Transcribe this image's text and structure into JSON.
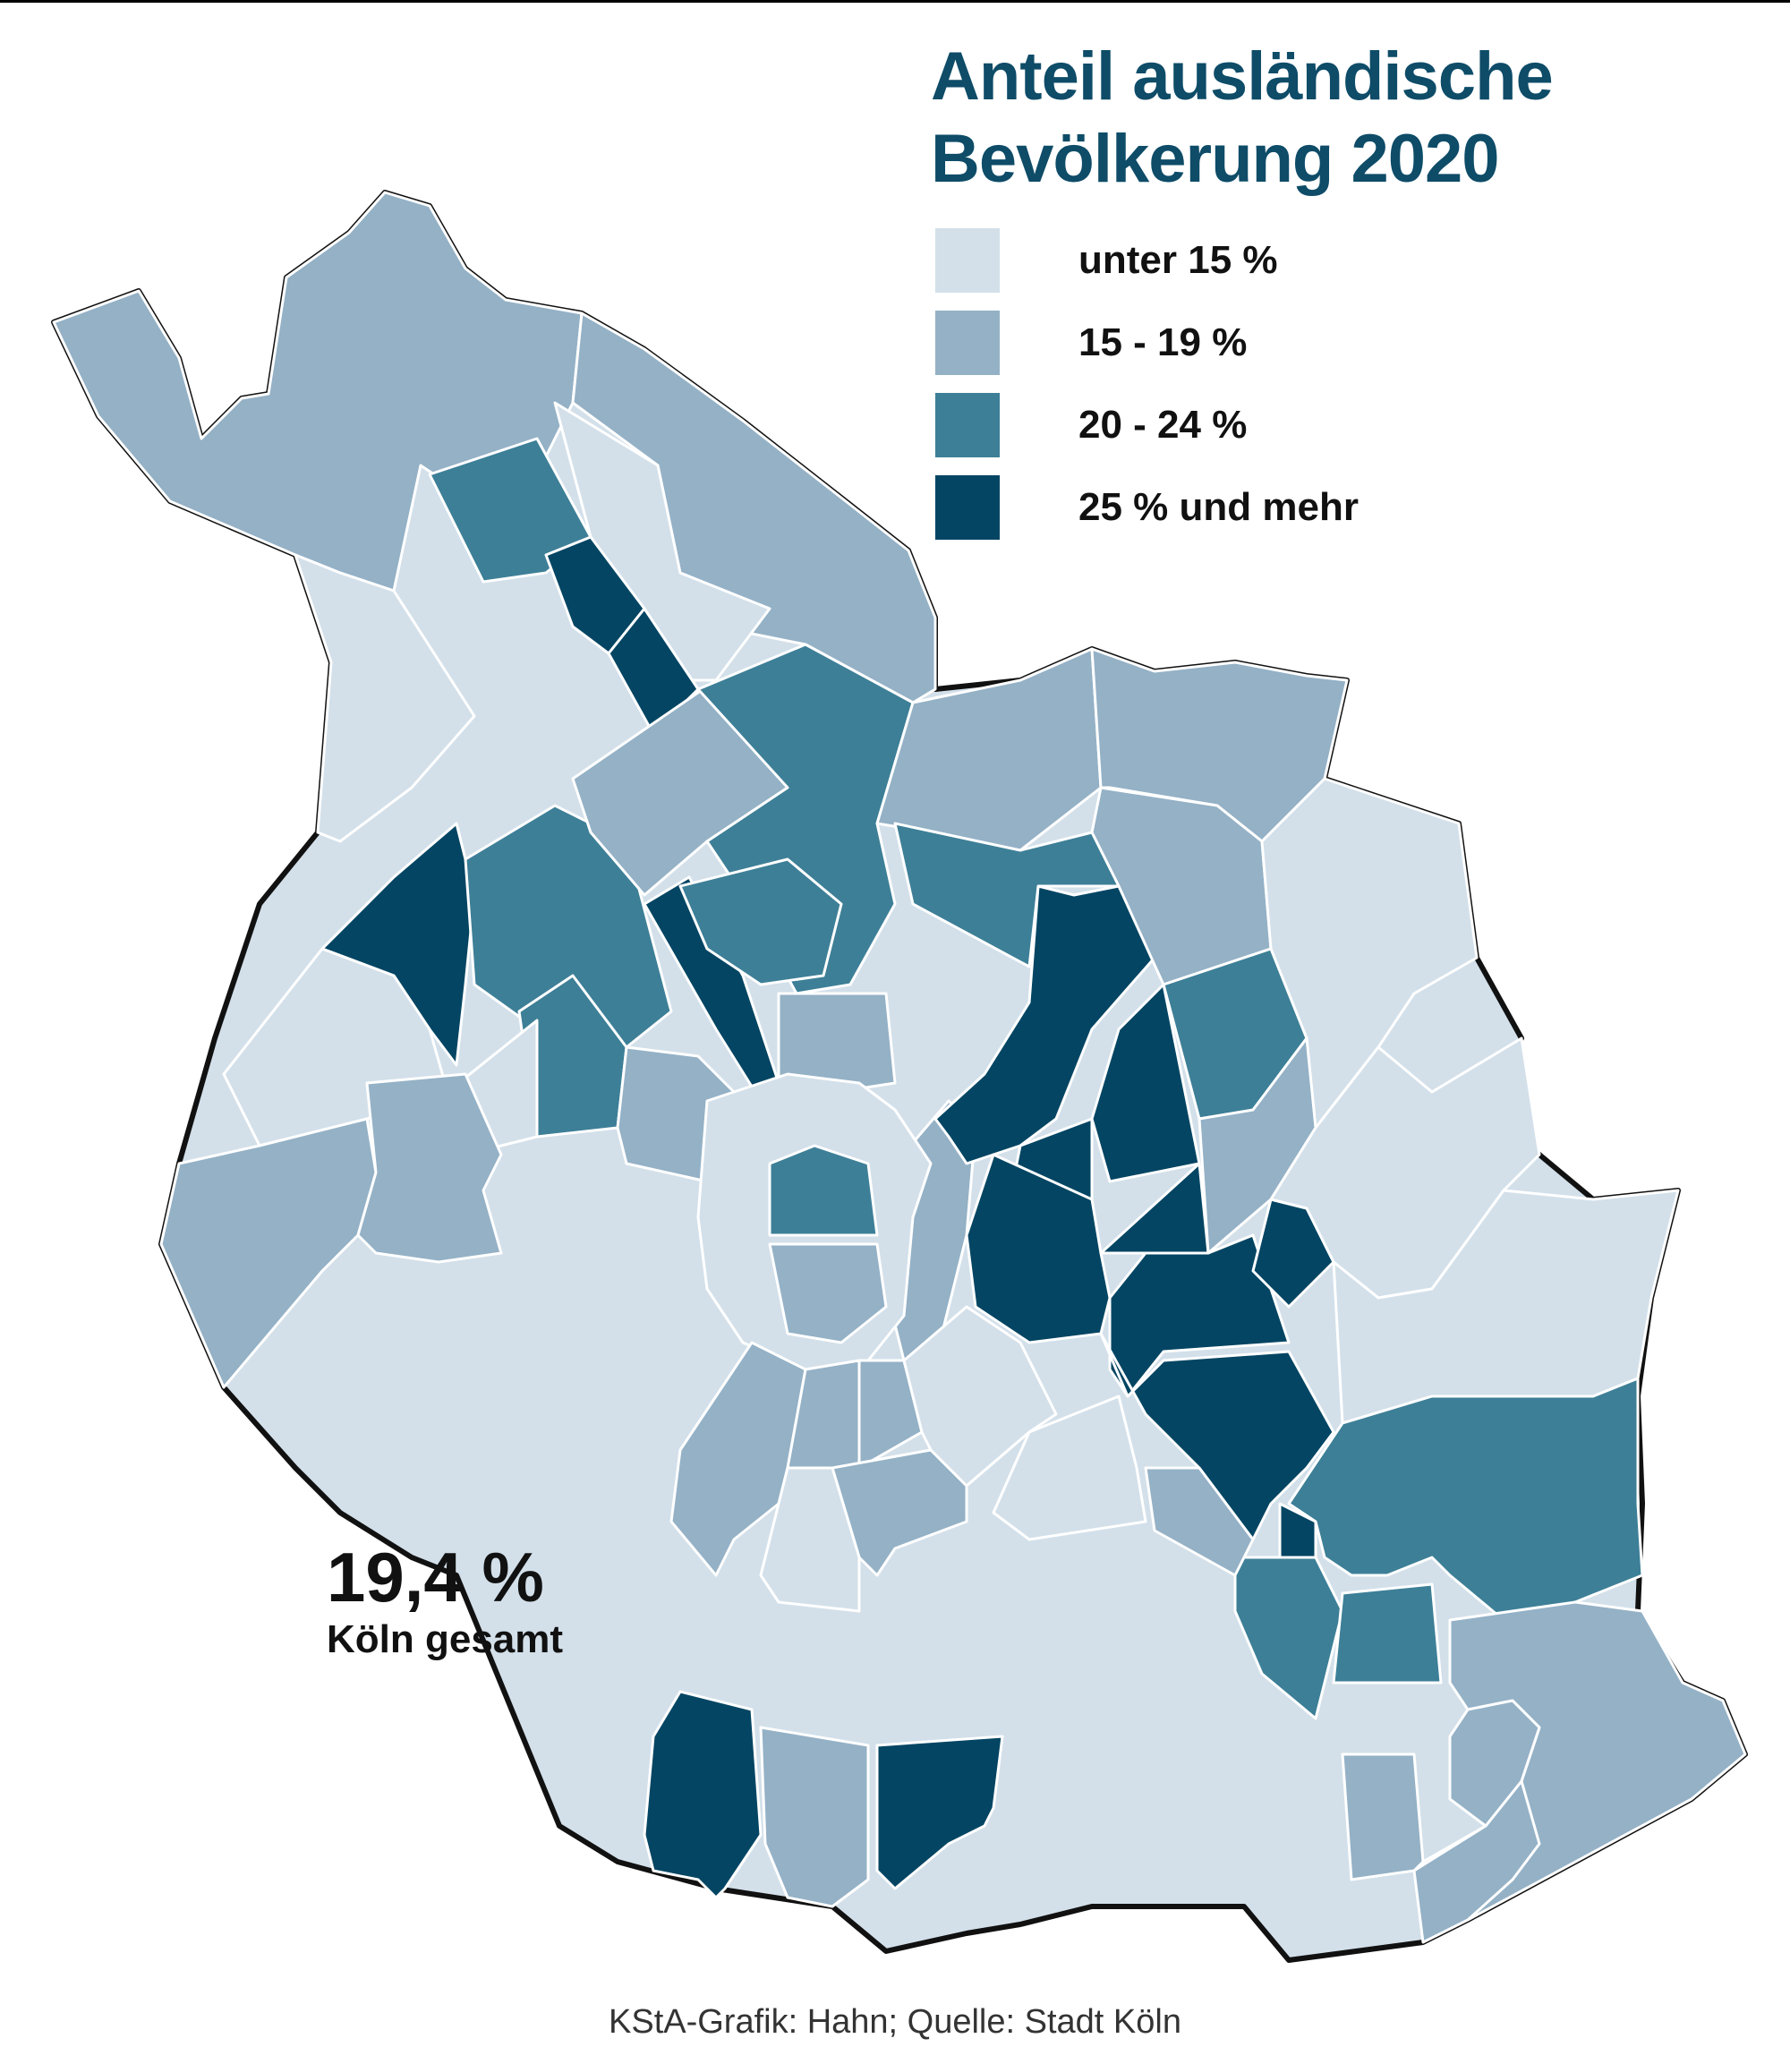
{
  "title_line1": "Anteil ausländische",
  "title_line2": "Bevölkerung 2020",
  "legend": [
    {
      "label": "unter 15 %",
      "color": "#d3e0ea"
    },
    {
      "label": "15 - 19 %",
      "color": "#94b1c6"
    },
    {
      "label": "20 - 24 %",
      "color": "#3d7f97"
    },
    {
      "label": "25 % und mehr",
      "color": "#034563"
    }
  ],
  "total_value": "19,4 %",
  "total_label": "Köln gesamt",
  "source": "KStA-Grafik: Hahn; Quelle: Stadt Köln",
  "colors": {
    "title": "#0e4c68",
    "boundary": "#111111",
    "district_border": "#ffffff"
  }
}
